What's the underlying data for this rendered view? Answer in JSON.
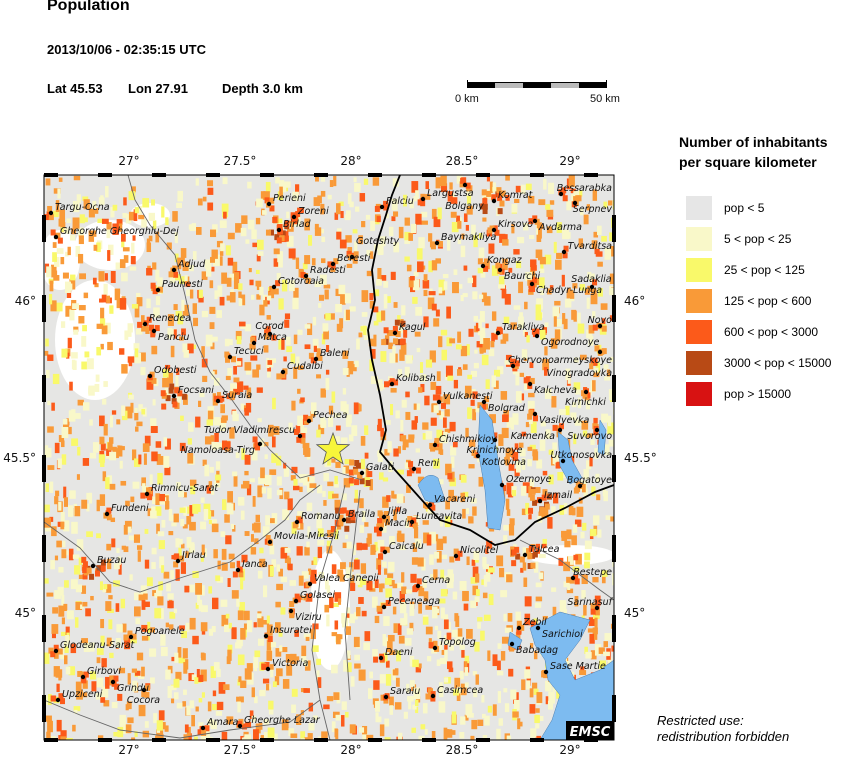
{
  "header": {
    "title": "Population",
    "datetime": "2013/10/06 - 02:35:15 UTC",
    "lat_label": "Lat 45.53",
    "lon_label": "Lon  27.91",
    "depth_label": "Depth  3.0 km"
  },
  "scale_bar": {
    "start": "0 km",
    "end": "50 km"
  },
  "map": {
    "lon_ticks": [
      "27°",
      "27.5°",
      "28°",
      "28.5°",
      "29°"
    ],
    "lat_ticks": [
      "46°",
      "45.5°",
      "45°"
    ],
    "epicenter": {
      "lat": 45.53,
      "lon": 27.91,
      "icon": "star-icon",
      "color": "#f7f53a"
    },
    "water_color": "#7dbbf0",
    "logo": "EMSC",
    "cities": [
      "Targu-Ocna",
      "Gheorghe Gheorghiu-Dej",
      "Adjud",
      "Paunesti",
      "Renedea",
      "Panciu",
      "Odobesti",
      "Focsani",
      "Suraia",
      "Tecuci",
      "Matca",
      "Corod",
      "Perieni",
      "Zoreni",
      "Birlad",
      "Cotoroaia",
      "Radesti",
      "Beresti",
      "Goteshty",
      "Baleni",
      "Cudalbi",
      "Pechea",
      "Tudor Vladimirescu",
      "Namoloasa-Tirg",
      "Falciu",
      "Largustsa",
      "Bolgany",
      "Komrat",
      "Bessarabka",
      "Serpnev",
      "Avdarma",
      "Kirsovo",
      "Baymakliya",
      "Tvarditsa",
      "Kongaz",
      "Baurchi",
      "Chadyr-Lunga",
      "Sadaklia",
      "Kagul",
      "Tarakliya",
      "Ogorodnoye",
      "Novo",
      "Chervonoarmeyskoye",
      "Vinogradovka",
      "Kolibash",
      "Vulkanesti",
      "Bolgrad",
      "Kalcheva",
      "Kirnichki",
      "Vasilyevka",
      "Suvorovo",
      "Kamenka",
      "Chishmikioy",
      "Krinichnoye",
      "Kotlovina",
      "Utkonosovka",
      "Reni",
      "Galati",
      "Ozernoye",
      "Bogatoye",
      "Izmail",
      "Vacareni",
      "Jijila",
      "Luncavita",
      "Macin",
      "Braila",
      "Romanu",
      "Movila-Miresii",
      "Caicalu",
      "Nicolitel",
      "Tulcea",
      "Fundeni",
      "Rimnicu-Sarat",
      "Buzau",
      "Jirlau",
      "Ianca",
      "Valea Canepii",
      "Golasei",
      "Viziru",
      "Bestepe",
      "Cerna",
      "Peceneaga",
      "Sarinasuf",
      "Pogoanele",
      "Glodeanu-Sarat",
      "Insuratei",
      "Zebil",
      "Sarichioi",
      "Babadag",
      "Topolog",
      "Victoria",
      "Daeni",
      "Sase Martie",
      "Girbovi",
      "Grindu",
      "Cocora",
      "Upziceni",
      "Saraiu",
      "Casimcea",
      "Amara",
      "Gheorghe Lazar"
    ]
  },
  "legend": {
    "title_line1": "Number of inhabitants",
    "title_line2": "per square kilometer",
    "items": [
      {
        "label": "pop < 5",
        "color": "#e6e6e6"
      },
      {
        "label": "5 < pop < 25",
        "color": "#f9f8c9"
      },
      {
        "label": "25 < pop < 125",
        "color": "#f9f96a"
      },
      {
        "label": "125 < pop < 600",
        "color": "#f99a38"
      },
      {
        "label": "600 < pop < 3000",
        "color": "#fc5a1a"
      },
      {
        "label": "3000 < pop < 15000",
        "color": "#b84a15"
      },
      {
        "label": "pop > 15000",
        "color": "#d81212"
      }
    ]
  },
  "footer": {
    "line1": "Restricted use:",
    "line2": "redistribution forbidden"
  }
}
